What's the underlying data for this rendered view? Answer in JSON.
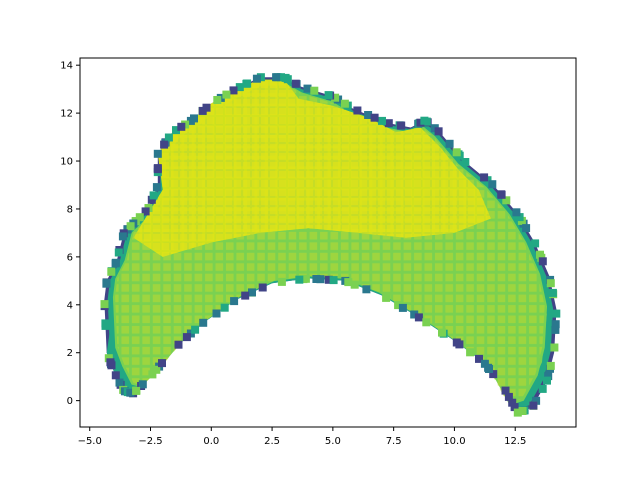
{
  "chart_data": {
    "type": "scatter",
    "title": "",
    "xlabel": "",
    "ylabel": "",
    "xlim": [
      -5.4,
      15.0
    ],
    "ylim": [
      -1.1,
      14.3
    ],
    "x_ticks": [
      -5.0,
      -2.5,
      0.0,
      2.5,
      5.0,
      7.5,
      10.0,
      12.5
    ],
    "x_tick_labels": [
      "−5.0",
      "−2.5",
      "0.0",
      "2.5",
      "5.0",
      "7.5",
      "10.0",
      "12.5"
    ],
    "y_ticks": [
      0,
      2,
      4,
      6,
      8,
      10,
      12,
      14
    ],
    "y_tick_labels": [
      "0",
      "2",
      "4",
      "6",
      "8",
      "10",
      "12",
      "14"
    ],
    "grid": false,
    "legend": "none",
    "marker": "square",
    "colormap": "viridis",
    "colors": {
      "low": "#414487",
      "mid_low": "#2a788e",
      "mid": "#22a884",
      "mid_high": "#7ad151",
      "high": "#d2e21b"
    },
    "outer_boundary": [
      [
        -4.4,
        4.2
      ],
      [
        -4.3,
        2.0
      ],
      [
        -4.0,
        1.2
      ],
      [
        -3.6,
        0.4
      ],
      [
        -3.2,
        0.3
      ],
      [
        -2.5,
        1.0
      ],
      [
        -1.5,
        2.2
      ],
      [
        -0.4,
        3.2
      ],
      [
        1.0,
        4.2
      ],
      [
        2.5,
        4.9
      ],
      [
        4.0,
        5.1
      ],
      [
        5.5,
        5.0
      ],
      [
        7.0,
        4.4
      ],
      [
        8.5,
        3.5
      ],
      [
        10.0,
        2.5
      ],
      [
        11.2,
        1.6
      ],
      [
        12.0,
        0.6
      ],
      [
        12.6,
        -0.5
      ],
      [
        13.2,
        -0.3
      ],
      [
        13.8,
        0.8
      ],
      [
        14.1,
        2.0
      ],
      [
        14.2,
        3.8
      ],
      [
        13.9,
        5.2
      ],
      [
        13.3,
        6.6
      ],
      [
        12.6,
        7.8
      ],
      [
        11.6,
        9.0
      ],
      [
        10.4,
        10.0
      ],
      [
        9.4,
        11.2
      ],
      [
        8.8,
        11.7
      ],
      [
        8.2,
        11.4
      ],
      [
        7.2,
        11.6
      ],
      [
        5.8,
        12.2
      ],
      [
        5.0,
        12.7
      ],
      [
        3.7,
        13.1
      ],
      [
        3.0,
        13.5
      ],
      [
        2.0,
        13.5
      ],
      [
        1.0,
        13.0
      ],
      [
        0.0,
        12.4
      ],
      [
        -0.8,
        11.7
      ],
      [
        -1.6,
        11.2
      ],
      [
        -2.2,
        10.3
      ],
      [
        -2.2,
        9.0
      ],
      [
        -2.6,
        8.0
      ],
      [
        -3.2,
        7.4
      ],
      [
        -3.6,
        7.0
      ],
      [
        -3.9,
        5.8
      ],
      [
        -4.3,
        5.0
      ]
    ],
    "inner_band": [
      [
        -3.9,
        4.8
      ],
      [
        -3.2,
        4.7
      ],
      [
        -2.0,
        4.5
      ],
      [
        -0.5,
        4.9
      ],
      [
        1.0,
        5.4
      ],
      [
        2.5,
        5.7
      ],
      [
        4.0,
        6.0
      ],
      [
        5.5,
        6.0
      ],
      [
        7.0,
        5.5
      ],
      [
        8.5,
        4.9
      ],
      [
        10.0,
        4.3
      ],
      [
        11.3,
        3.3
      ],
      [
        12.2,
        1.8
      ],
      [
        12.7,
        0.2
      ],
      [
        12.6,
        -0.5
      ],
      [
        12.0,
        0.6
      ],
      [
        11.2,
        1.6
      ],
      [
        10.0,
        2.5
      ],
      [
        8.5,
        3.5
      ],
      [
        7.0,
        4.4
      ],
      [
        5.5,
        5.0
      ],
      [
        4.0,
        5.1
      ],
      [
        2.5,
        4.9
      ],
      [
        1.0,
        4.2
      ],
      [
        -0.4,
        3.2
      ],
      [
        -1.5,
        2.2
      ],
      [
        -2.5,
        1.0
      ],
      [
        -3.2,
        0.3
      ],
      [
        -3.6,
        0.4
      ],
      [
        -4.0,
        1.2
      ],
      [
        -4.3,
        2.0
      ]
    ],
    "core_region": [
      [
        -2.8,
        5.8
      ],
      [
        -1.0,
        6.4
      ],
      [
        1.0,
        6.9
      ],
      [
        3.0,
        7.2
      ],
      [
        5.0,
        7.1
      ],
      [
        7.0,
        6.8
      ],
      [
        9.0,
        7.0
      ],
      [
        10.8,
        7.2
      ],
      [
        12.3,
        6.8
      ],
      [
        13.4,
        5.4
      ],
      [
        13.8,
        3.6
      ],
      [
        13.6,
        1.6
      ],
      [
        13.0,
        0.3
      ],
      [
        12.8,
        1.6
      ],
      [
        12.4,
        3.0
      ],
      [
        11.4,
        4.2
      ],
      [
        9.6,
        5.4
      ],
      [
        7.5,
        6.0
      ],
      [
        5.0,
        6.5
      ],
      [
        2.5,
        6.4
      ],
      [
        0.5,
        6.0
      ],
      [
        -1.5,
        5.4
      ],
      [
        -3.0,
        5.0
      ]
    ],
    "upper_region": [
      [
        -2.2,
        10.3
      ],
      [
        -1.6,
        11.2
      ],
      [
        -0.8,
        11.7
      ],
      [
        0.0,
        12.4
      ],
      [
        1.0,
        13.0
      ],
      [
        2.0,
        13.4
      ],
      [
        3.0,
        13.4
      ],
      [
        3.6,
        12.6
      ],
      [
        5.0,
        12.3
      ],
      [
        6.5,
        11.8
      ],
      [
        7.6,
        11.2
      ],
      [
        8.6,
        11.4
      ],
      [
        9.4,
        10.6
      ],
      [
        10.2,
        9.6
      ],
      [
        11.0,
        8.8
      ],
      [
        11.5,
        7.6
      ],
      [
        10.0,
        7.0
      ],
      [
        8.0,
        6.8
      ],
      [
        6.0,
        7.0
      ],
      [
        4.0,
        7.2
      ],
      [
        2.0,
        7.0
      ],
      [
        0.0,
        6.6
      ],
      [
        -2.0,
        6.0
      ],
      [
        -3.2,
        6.8
      ],
      [
        -2.6,
        7.8
      ],
      [
        -2.0,
        8.8
      ]
    ]
  }
}
